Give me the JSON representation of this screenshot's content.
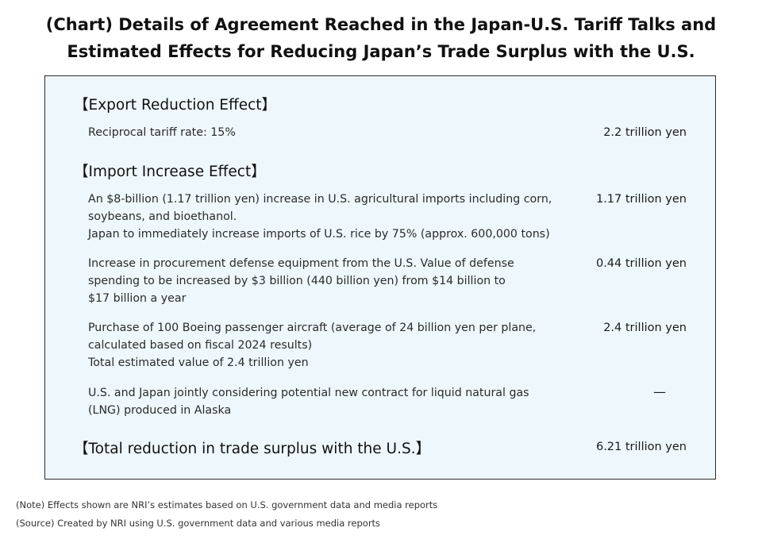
{
  "title": {
    "line1": "(Chart) Details of Agreement Reached in the Japan-U.S. Tariff Talks and",
    "line2": "Estimated Effects for Reducing Japan’s Trade Surplus with the U.S."
  },
  "export_section": {
    "heading": "【Export Reduction Effect】",
    "items": [
      {
        "lines": [
          "Reciprocal tariff rate: 15%"
        ],
        "value": "2.2 trillion yen"
      }
    ]
  },
  "import_section": {
    "heading": "【Import Increase Effect】",
    "items": [
      {
        "lines": [
          "An $8-billion (1.17 trillion yen) increase in U.S. agricultural imports including corn,",
          "soybeans, and bioethanol.",
          "Japan to immediately increase imports of U.S. rice by 75% (approx. 600,000 tons)"
        ],
        "value": "1.17 trillion yen"
      },
      {
        "lines": [
          "Increase in procurement defense equipment from the U.S. Value of defense",
          "spending to be increased by $3 billion (440 billion yen) from $14 billion to",
          "$17 billion a year"
        ],
        "value": "0.44 trillion yen"
      },
      {
        "lines": [
          "Purchase of 100 Boeing passenger aircraft (average of 24 billion yen per plane,",
          "calculated based on fiscal 2024 results)",
          "Total estimated value of 2.4 trillion yen"
        ],
        "value": "2.4 trillion yen"
      },
      {
        "lines": [
          "U.S. and Japan jointly considering potential new contract for liquid natural gas",
          "(LNG) produced in Alaska"
        ],
        "value": "—"
      }
    ]
  },
  "total": {
    "heading": "【Total reduction in trade surplus with the U.S.】",
    "value": "6.21 trillion yen"
  },
  "notes": {
    "note": "(Note) Effects shown are NRI’s estimates based on U.S. government data and media reports",
    "source": "(Source) Created by NRI using U.S. government data and various media reports"
  },
  "colors": {
    "panel_background": "#eef8fc",
    "panel_border": "#2b2b2b"
  }
}
